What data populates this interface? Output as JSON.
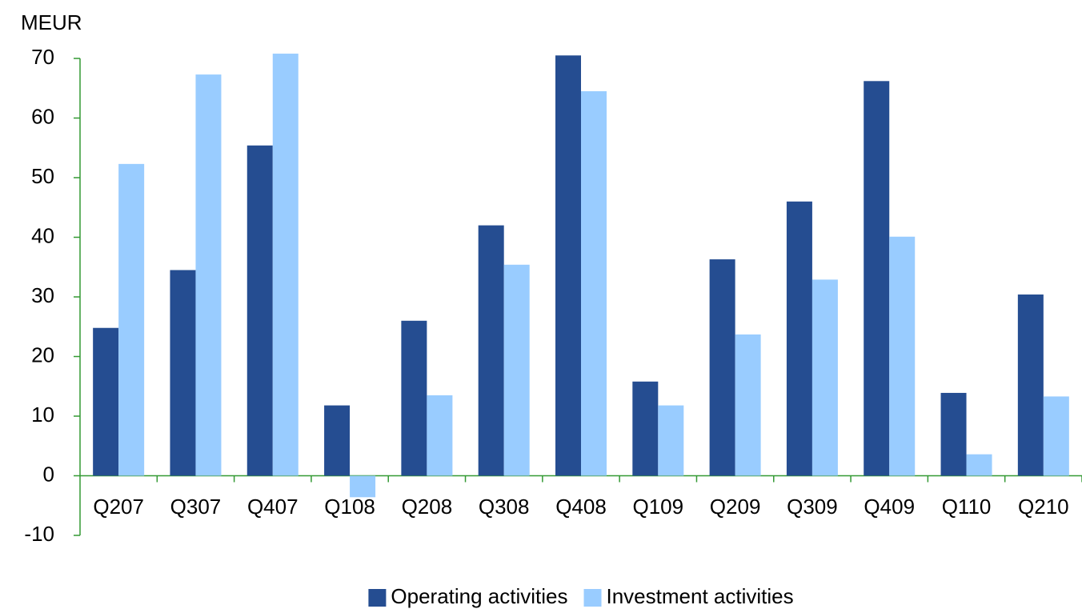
{
  "chart_data": {
    "type": "bar",
    "y_label": "MEUR",
    "categories": [
      "Q207",
      "Q307",
      "Q407",
      "Q108",
      "Q208",
      "Q308",
      "Q408",
      "Q109",
      "Q209",
      "Q309",
      "Q409",
      "Q110",
      "Q210"
    ],
    "series": [
      {
        "name": "Operating activities",
        "color": "#254d91",
        "values": [
          24.8,
          34.5,
          55.4,
          11.8,
          26.0,
          42.0,
          70.5,
          15.8,
          36.3,
          46.0,
          66.2,
          13.9,
          30.4
        ]
      },
      {
        "name": "Investment activities",
        "color": "#99ccff",
        "values": [
          52.3,
          67.3,
          70.8,
          -3.6,
          13.5,
          35.4,
          64.5,
          11.8,
          23.7,
          32.9,
          40.1,
          3.6,
          13.3
        ]
      }
    ],
    "ylim": [
      -10,
      70
    ],
    "yticks": [
      -10,
      0,
      10,
      20,
      30,
      40,
      50,
      60,
      70
    ],
    "legend": "bottom",
    "grid": false
  }
}
